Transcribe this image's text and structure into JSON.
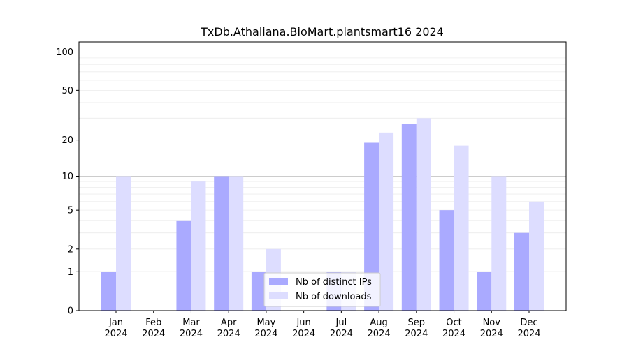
{
  "chart_data": {
    "type": "bar",
    "title": "TxDb.Athaliana.BioMart.plantsmart16 2024",
    "xlabel": "",
    "ylabel": "",
    "y_scale": "log1p",
    "ylim": [
      0,
      120
    ],
    "grid": true,
    "legend_position": "lower-center",
    "y_ticks": [
      {
        "value": 0,
        "label": "0"
      },
      {
        "value": 1,
        "label": "1"
      },
      {
        "value": 2,
        "label": "2"
      },
      {
        "value": 5,
        "label": "5"
      },
      {
        "value": 10,
        "label": "10"
      },
      {
        "value": 20,
        "label": "20"
      },
      {
        "value": 50,
        "label": "50"
      },
      {
        "value": 100,
        "label": "100"
      }
    ],
    "categories": [
      {
        "month": "Jan",
        "year": "2024"
      },
      {
        "month": "Feb",
        "year": "2024"
      },
      {
        "month": "Mar",
        "year": "2024"
      },
      {
        "month": "Apr",
        "year": "2024"
      },
      {
        "month": "May",
        "year": "2024"
      },
      {
        "month": "Jun",
        "year": "2024"
      },
      {
        "month": "Jul",
        "year": "2024"
      },
      {
        "month": "Aug",
        "year": "2024"
      },
      {
        "month": "Sep",
        "year": "2024"
      },
      {
        "month": "Oct",
        "year": "2024"
      },
      {
        "month": "Nov",
        "year": "2024"
      },
      {
        "month": "Dec",
        "year": "2024"
      }
    ],
    "series": [
      {
        "name": "Nb of distinct IPs",
        "color": "#aaaaff",
        "values": [
          1,
          0,
          4,
          10,
          1,
          0,
          1,
          19,
          27,
          5,
          1,
          3
        ]
      },
      {
        "name": "Nb of downloads",
        "color": "#ddddff",
        "values": [
          10,
          0,
          9,
          10,
          2,
          0,
          1,
          23,
          30,
          18,
          10,
          6
        ]
      }
    ]
  }
}
